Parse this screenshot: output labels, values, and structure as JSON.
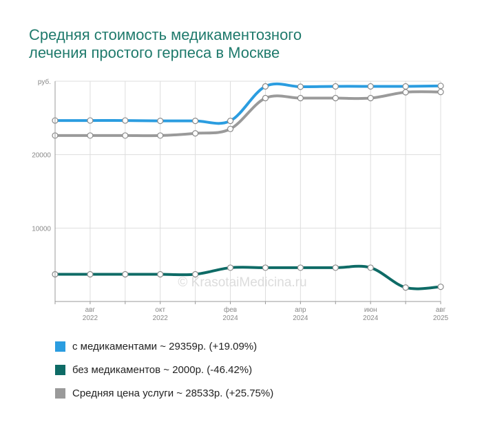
{
  "header": {
    "title_line1": "Средняя стоимость медикаментозного",
    "title_line2": "лечения простого герпеса в Москве"
  },
  "watermark": "© KrasotaiMedicina.ru",
  "chart_data": {
    "type": "line",
    "title": "Средняя стоимость медикаментозного лечения простого герпеса в Москве",
    "ylabel": "руб.",
    "ylim": [
      0,
      30000
    ],
    "yticks": [
      {
        "value": 10000,
        "label": "10000"
      },
      {
        "value": 20000,
        "label": "20000"
      },
      {
        "value": 30000,
        "label": "руб."
      }
    ],
    "x_count": 12,
    "xticks": [
      {
        "index": 1,
        "month": "авг",
        "year": "2022"
      },
      {
        "index": 3,
        "month": "окт",
        "year": "2022"
      },
      {
        "index": 5,
        "month": "фев",
        "year": "2024"
      },
      {
        "index": 7,
        "month": "апр",
        "year": "2024"
      },
      {
        "index": 9,
        "month": "июн",
        "year": "2024"
      },
      {
        "index": 11,
        "month": "авг",
        "year": "2025"
      }
    ],
    "series": [
      {
        "name": "с медикаментами",
        "legend": "с медикаментами ~ 29359р. (+19.09%)",
        "color": "#2b9de0",
        "values": [
          24650,
          24650,
          24650,
          24600,
          24600,
          24600,
          29300,
          29250,
          29300,
          29300,
          29300,
          29359
        ]
      },
      {
        "name": "Средняя цена услуги",
        "legend": "Средняя цена услуги ~ 28533р. (+25.75%)",
        "color": "#9a9a9a",
        "values": [
          22600,
          22600,
          22600,
          22600,
          22900,
          23500,
          27700,
          27700,
          27700,
          27700,
          28500,
          28533
        ]
      },
      {
        "name": "без медикаментов",
        "legend": "без медикаментов ~ 2000р. (-46.42%)",
        "color": "#0e6b66",
        "values": [
          3700,
          3700,
          3700,
          3700,
          3700,
          4600,
          4600,
          4600,
          4600,
          4600,
          1900,
          2000
        ]
      }
    ]
  }
}
